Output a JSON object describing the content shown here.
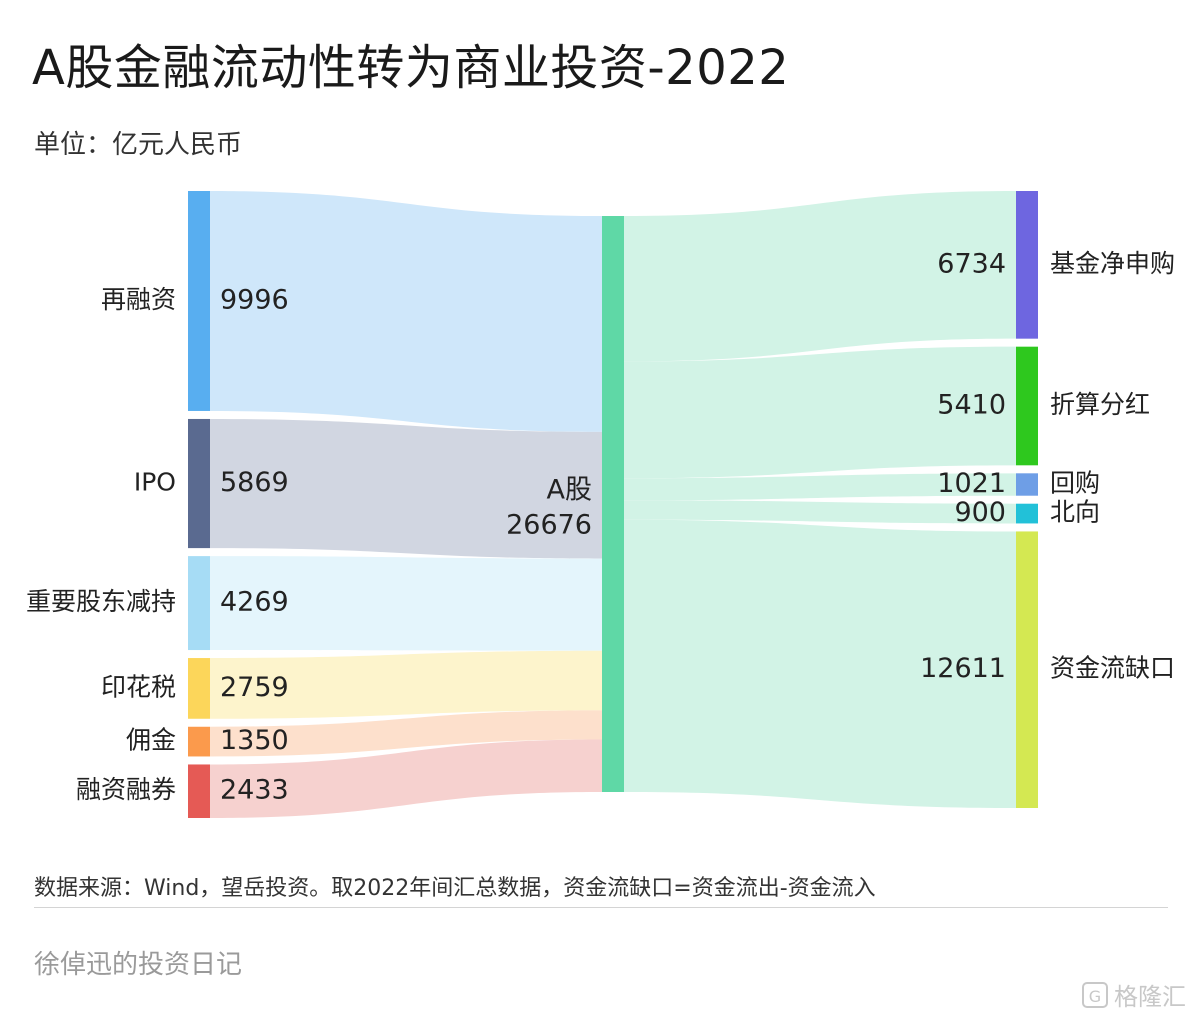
{
  "title": "A股金融流动性转为商业投资-2022",
  "subtitle": "单位：亿元人民币",
  "source": "数据来源：Wind，望岳投资。取2022年间汇总数据，资金流缺口=资金流出-资金流入",
  "author": "徐倬迅的投资日记",
  "watermark": "格隆汇",
  "chart_data": {
    "type": "sankey",
    "center": {
      "name": "A股",
      "value": 26676,
      "color": "#5fd8a6"
    },
    "sources": [
      {
        "name": "再融资",
        "value": 9996,
        "color": "#58aef0",
        "flow_color": "#cfe7fa"
      },
      {
        "name": "IPO",
        "value": 5869,
        "color": "#5a6a90",
        "flow_color": "#d1d6e1"
      },
      {
        "name": "重要股东减持",
        "value": 4269,
        "color": "#a6dcf5",
        "flow_color": "#e4f5fc"
      },
      {
        "name": "印花税",
        "value": 2759,
        "color": "#fcd65a",
        "flow_color": "#fdf4cc"
      },
      {
        "name": "佣金",
        "value": 1350,
        "color": "#fb9a4c",
        "flow_color": "#fde0cc"
      },
      {
        "name": "融资融券",
        "value": 2433,
        "color": "#e55a55",
        "flow_color": "#f6d1cf"
      }
    ],
    "targets": [
      {
        "name": "基金净申购",
        "value": 6734,
        "color": "#6e66e0"
      },
      {
        "name": "折算分红",
        "value": 5410,
        "color": "#2ec81e"
      },
      {
        "name": "回购",
        "value": 1021,
        "color": "#6e9ee6"
      },
      {
        "name": "北向",
        "value": 900,
        "color": "#22c1d8"
      },
      {
        "name": "资金流缺口",
        "value": 12611,
        "color": "#d4e852"
      }
    ],
    "out_flow_color": "#d2f3e6"
  }
}
